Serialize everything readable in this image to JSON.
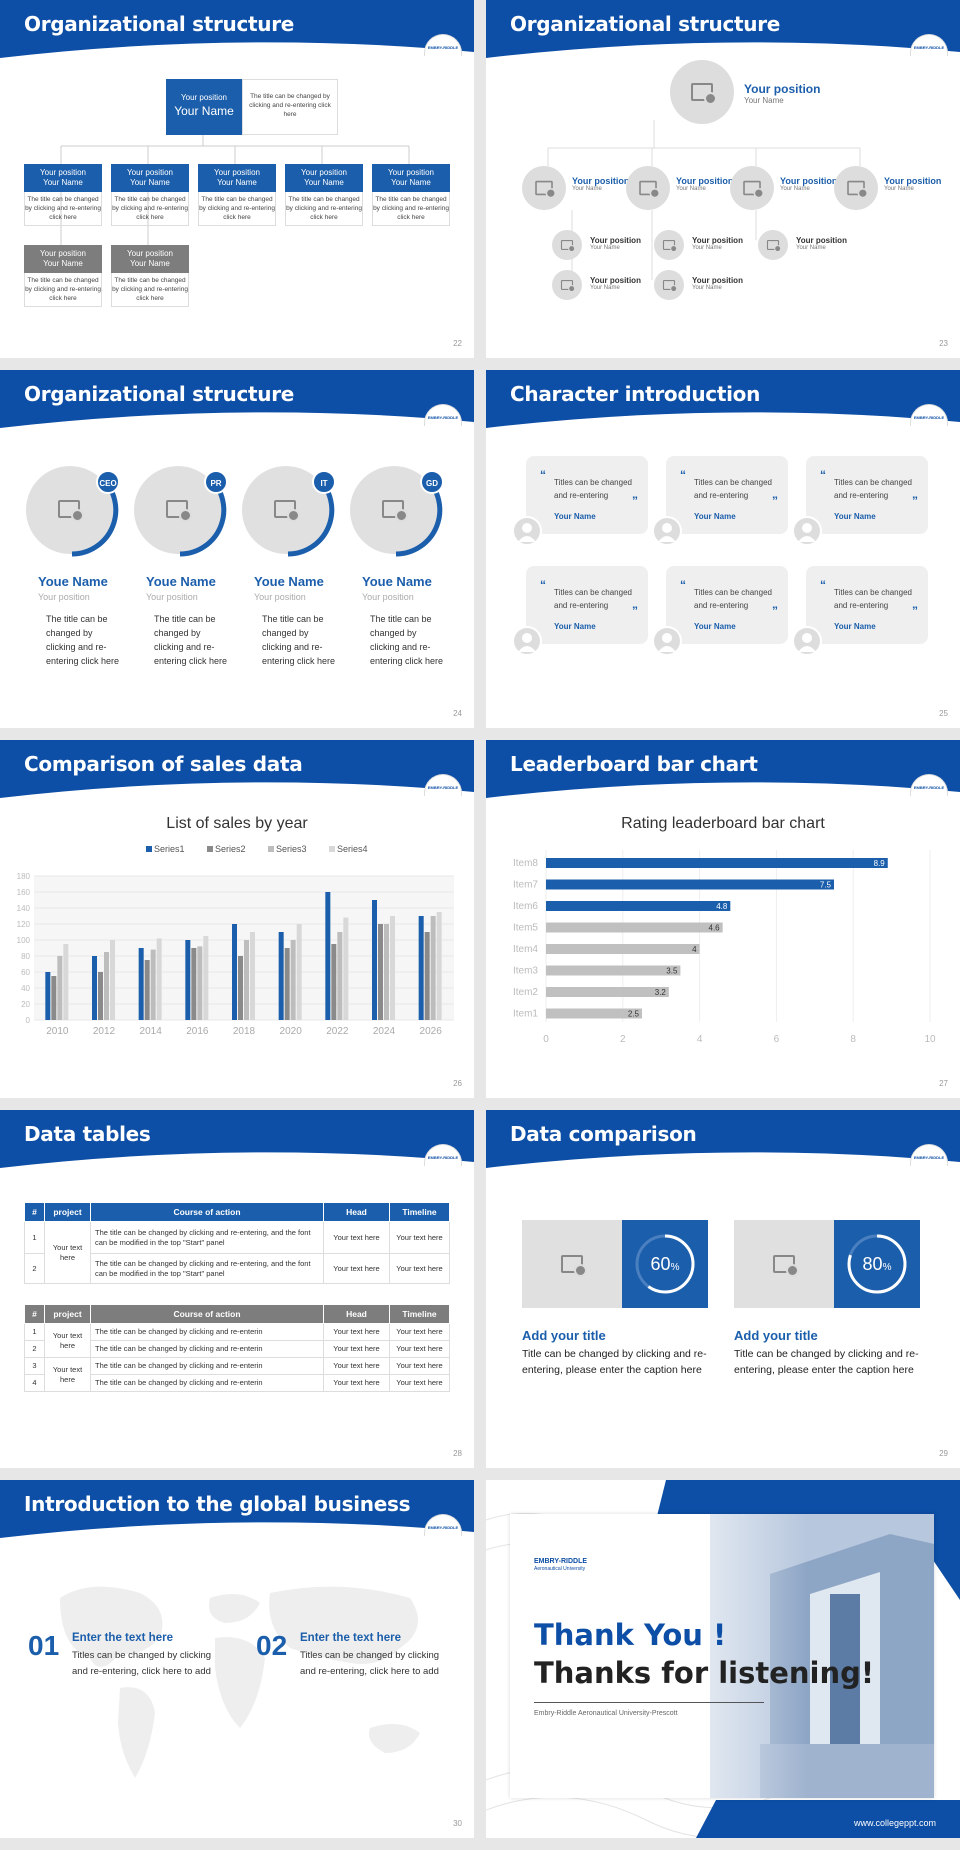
{
  "logo_text": "EMBRY-RIDDLE",
  "slides": {
    "s22": {
      "title": "Organizational structure",
      "page": "22",
      "top": {
        "position": "Your position",
        "name": "Your Name",
        "desc": "The title can be changed by clicking and re-entering click here"
      },
      "nodes": [
        {
          "position": "Your position",
          "name": "Your Name",
          "desc": "The title can be changed by clicking and re-entering click here"
        },
        {
          "position": "Your position",
          "name": "Your Name",
          "desc": "The title can be changed by clicking and re-entering click here"
        },
        {
          "position": "Your position",
          "name": "Your Name",
          "desc": "The title can be changed by clicking and re-entering click here"
        },
        {
          "position": "Your position",
          "name": "Your Name",
          "desc": "The title can be changed by clicking and re-entering click here"
        },
        {
          "position": "Your position",
          "name": "Your Name",
          "desc": "The title can be changed by clicking and re-entering click here"
        },
        {
          "position": "Your position",
          "name": "Your Name",
          "desc": "The title can be changed by clicking and re-entering click here"
        },
        {
          "position": "Your position",
          "name": "Your Name",
          "desc": "The title can be changed by clicking and re-entering click here"
        }
      ]
    },
    "s23": {
      "title": "Organizational structure",
      "page": "23",
      "top_position": "Your position",
      "top_name": "Your Name",
      "pos": "Your position",
      "name": "Your Name"
    },
    "s24": {
      "title": "Organizational structure",
      "page": "24",
      "people": [
        {
          "badge": "CEO",
          "name": "Youe Name",
          "position": "Your position",
          "desc": "The title can be changed by clicking and re-entering click here"
        },
        {
          "badge": "PR",
          "name": "Youe Name",
          "position": "Your position",
          "desc": "The title can be changed by clicking and re-entering click here"
        },
        {
          "badge": "IT",
          "name": "Youe Name",
          "position": "Your position",
          "desc": "The title can be changed by clicking and re-entering click here"
        },
        {
          "badge": "GD",
          "name": "Youe Name",
          "position": "Your position",
          "desc": "The title can be changed by clicking and re-entering click here"
        }
      ]
    },
    "s25": {
      "title": "Character introduction",
      "page": "25",
      "quote": "Titles can be changed and re-entering",
      "name": "Your Name"
    },
    "s26": {
      "title": "Comparison of sales data",
      "page": "26"
    },
    "s27": {
      "title": "Leaderboard bar chart",
      "page": "27"
    },
    "s28": {
      "title": "Data tables",
      "page": "28",
      "headers": [
        "#",
        "project",
        "Course of action",
        "Head",
        "Timeline"
      ],
      "t1": {
        "project": "Your text here",
        "rows": [
          {
            "n": "1",
            "course": "The title can be changed by clicking and re-entering, and the font can be modified in the top \"Start\" panel",
            "head": "Your text here",
            "time": "Your text here"
          },
          {
            "n": "2",
            "course": "The title can be changed by clicking and re-entering, and the font can be modified in the top \"Start\" panel",
            "head": "Your text here",
            "time": "Your text here"
          }
        ]
      },
      "t2": {
        "project": "Your text here",
        "rows": [
          {
            "n": "1",
            "course": "The title can be changed by clicking and re-enterin",
            "head": "Your text here",
            "time": "Your text here"
          },
          {
            "n": "2",
            "course": "The title can be changed by clicking and re-enterin",
            "head": "Your text here",
            "time": "Your text here"
          },
          {
            "n": "3",
            "course": "The title can be changed by clicking and re-enterin",
            "head": "Your text here",
            "time": "Your text here"
          },
          {
            "n": "4",
            "course": "The title can be changed by clicking and re-enterin",
            "head": "Your text here",
            "time": "Your text here"
          }
        ]
      }
    },
    "s29": {
      "title": "Data comparison",
      "page": "29",
      "items": [
        {
          "percent": "60",
          "unit": "%",
          "value": 0.6,
          "heading": "Add your title",
          "text": "Title can be changed by clicking and re-entering, please enter the caption here"
        },
        {
          "percent": "80",
          "unit": "%",
          "value": 0.8,
          "heading": "Add your title",
          "text": "Title can be changed by clicking and re-entering, please enter the caption here"
        }
      ]
    },
    "s30": {
      "title": "Introduction to the global business",
      "page": "30",
      "items": [
        {
          "num": "01",
          "heading": "Enter the text here",
          "text": "Titles can be changed by clicking and re-entering, click here to add"
        },
        {
          "num": "02",
          "heading": "Enter the text here",
          "text": "Titles can be changed by clicking and re-entering, click here to add"
        }
      ]
    },
    "s31": {
      "logo": "EMBRY-RIDDLE",
      "logo_sub": "Aeronautical University",
      "thank": "Thank You !",
      "thanks": "Thanks for listening!",
      "sub": "Embry-Riddle Aeronautical University-Prescott",
      "url": "www.collegeppt.com"
    }
  },
  "colors": {
    "blue": "#1b5eab",
    "dark_blue": "#0d4ea6",
    "grey": "#7d7d7d",
    "light_grey": "#c0c0c0"
  },
  "chart_data": [
    {
      "type": "bar",
      "title": "List of sales by year",
      "categories": [
        "2010",
        "2012",
        "2014",
        "2016",
        "2018",
        "2020",
        "2022",
        "2024",
        "2026"
      ],
      "series": [
        {
          "name": "Series1",
          "values": [
            60,
            80,
            90,
            100,
            120,
            110,
            160,
            150,
            130
          ]
        },
        {
          "name": "Series2",
          "values": [
            55,
            60,
            75,
            90,
            80,
            90,
            95,
            120,
            110
          ]
        },
        {
          "name": "Series3",
          "values": [
            80,
            85,
            88,
            92,
            100,
            100,
            110,
            120,
            130
          ]
        },
        {
          "name": "Series4",
          "values": [
            95,
            100,
            102,
            105,
            110,
            120,
            128,
            130,
            135
          ]
        }
      ],
      "ylim": [
        0,
        180
      ],
      "yticks": [
        0,
        20,
        40,
        60,
        80,
        100,
        120,
        140,
        160,
        180
      ],
      "legend": "top"
    },
    {
      "type": "bar",
      "orientation": "horizontal",
      "title": "Rating leaderboard bar chart",
      "categories": [
        "Item8",
        "Item7",
        "Item6",
        "Item5",
        "Item4",
        "Item3",
        "Item2",
        "Item1"
      ],
      "values": [
        8.9,
        7.5,
        4.8,
        4.6,
        4,
        3.5,
        3.2,
        2.5
      ],
      "xlim": [
        0,
        10
      ],
      "xticks": [
        0,
        2,
        4,
        6,
        8,
        10
      ],
      "highlight_top": 3
    }
  ]
}
